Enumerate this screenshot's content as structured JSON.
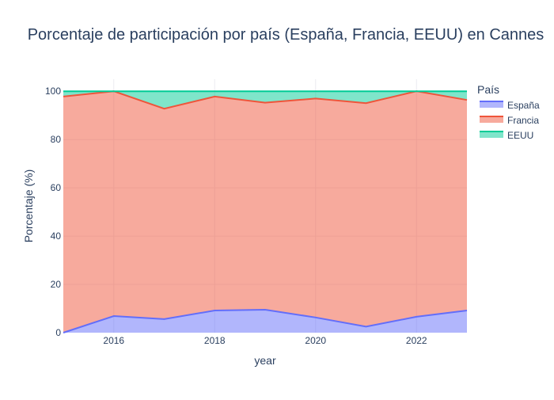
{
  "chart_data": {
    "type": "area",
    "stacked": true,
    "title": "Porcentaje de participación por país (España, Francia, EEUU) en Cannes",
    "xlabel": "year",
    "ylabel": "Porcentaje (%)",
    "x": [
      2015,
      2016,
      2017,
      2018,
      2019,
      2020,
      2021,
      2022,
      2023
    ],
    "xlim": [
      2015,
      2023
    ],
    "ylim": [
      0,
      105
    ],
    "xticks": [
      2016,
      2018,
      2020,
      2022
    ],
    "yticks": [
      0,
      20,
      40,
      60,
      80,
      100
    ],
    "grid": true,
    "legend": {
      "title": "País",
      "position": "right"
    },
    "series": [
      {
        "name": "España",
        "color": "#636efa",
        "fill": "rgba(99,110,250,0.5)",
        "values": [
          0,
          6.9,
          5.6,
          9.2,
          9.5,
          6.3,
          2.5,
          6.6,
          9.2
        ]
      },
      {
        "name": "Francia",
        "color": "#ef553b",
        "fill": "rgba(239,85,59,0.5)",
        "values": [
          97.8,
          93.1,
          87.2,
          88.6,
          85.8,
          90.7,
          92.6,
          93.4,
          87.2
        ]
      },
      {
        "name": "EEUU",
        "color": "#00cc96",
        "fill": "rgba(0,204,150,0.5)",
        "values": [
          2.2,
          0,
          7.2,
          2.2,
          4.7,
          3.0,
          4.9,
          0,
          3.6
        ]
      }
    ]
  }
}
